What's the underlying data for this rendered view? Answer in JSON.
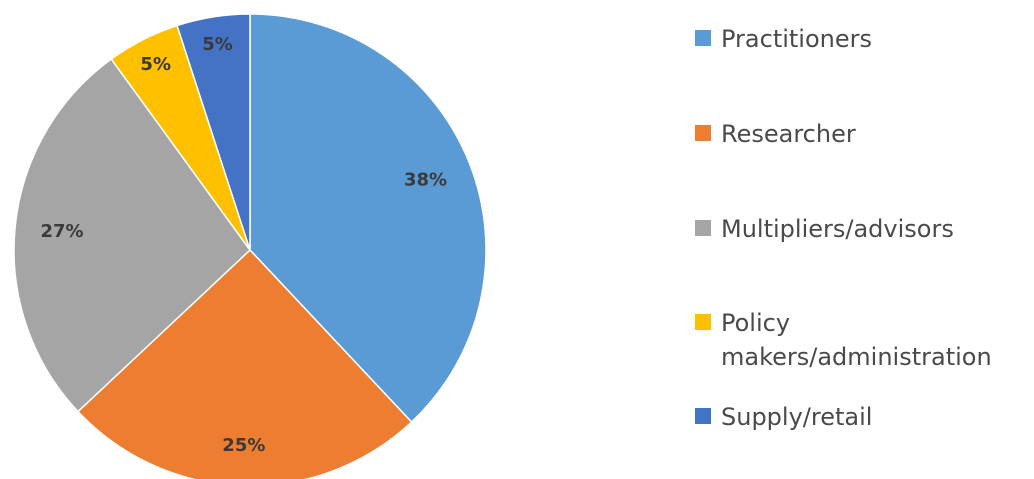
{
  "chart_data": {
    "type": "pie",
    "title": "",
    "categories": [
      "Practitioners",
      "Researcher",
      "Multipliers/advisors",
      "Policy makers/administration",
      "Supply/retail"
    ],
    "values": [
      38,
      25,
      27,
      5,
      5
    ],
    "value_labels": [
      "38%",
      "25%",
      "27%",
      "5%",
      "5%"
    ],
    "colors": [
      "#5b9bd5",
      "#ed7d31",
      "#a5a5a5",
      "#ffc000",
      "#4472c4"
    ],
    "legend_position": "right",
    "start_angle": "top",
    "direction": "clockwise"
  }
}
